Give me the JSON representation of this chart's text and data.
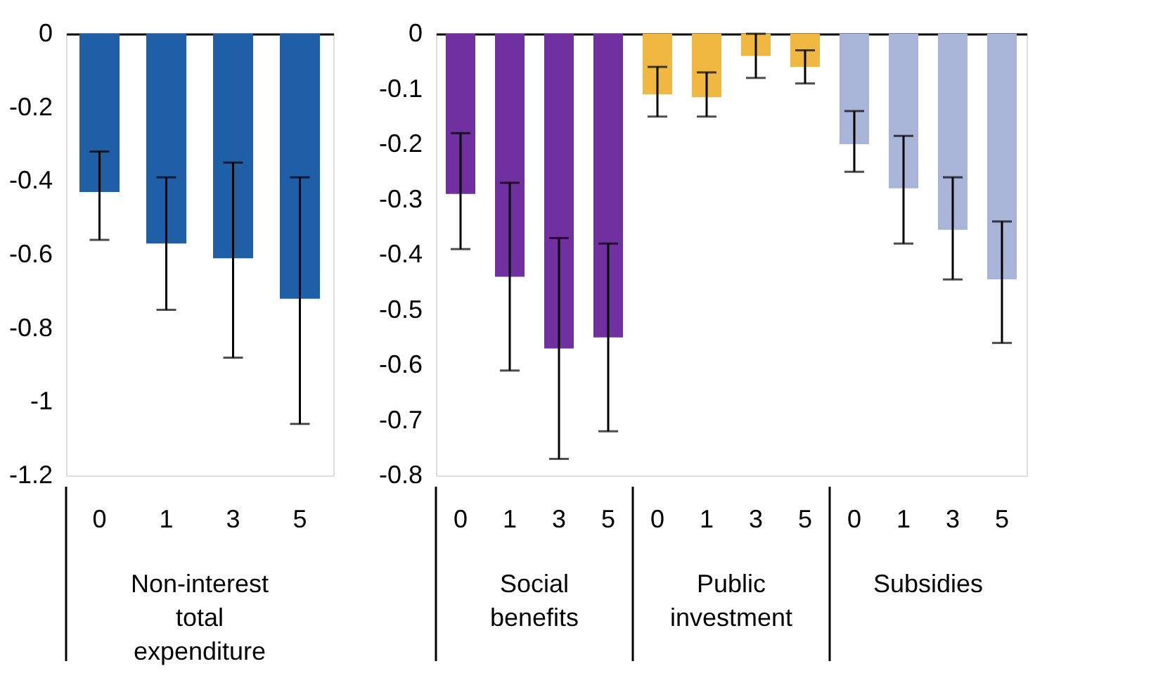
{
  "chart_data": [
    {
      "type": "bar",
      "categories": [
        "0",
        "1",
        "3",
        "5"
      ],
      "series": [
        {
          "color": "#1f5fa8",
          "values": [
            -0.43,
            -0.57,
            -0.61,
            -0.72
          ],
          "errors": [
            [
              -0.56,
              -0.32
            ],
            [
              -0.75,
              -0.39
            ],
            [
              -0.88,
              -0.35
            ],
            [
              -1.06,
              -0.39
            ]
          ]
        }
      ],
      "annotations": [
        "Non-interest total expenditure"
      ],
      "ylim": [
        -1.2,
        0
      ],
      "yticks": [
        0,
        -0.2,
        -0.4,
        -0.6,
        -0.8,
        -1,
        -1.2
      ],
      "grid": false
    },
    {
      "type": "bar",
      "categories": [
        "0",
        "1",
        "3",
        "5",
        "0",
        "1",
        "3",
        "5",
        "0",
        "1",
        "3",
        "5"
      ],
      "series": [
        {
          "color": "#7030a0",
          "values": [
            -0.29,
            -0.44,
            -0.57,
            -0.55,
            null,
            null,
            null,
            null,
            null,
            null,
            null,
            null
          ],
          "errors": [
            [
              -0.39,
              -0.18
            ],
            [
              -0.61,
              -0.27
            ],
            [
              -0.77,
              -0.37
            ],
            [
              -0.72,
              -0.38
            ],
            null,
            null,
            null,
            null,
            null,
            null,
            null,
            null
          ]
        },
        {
          "color": "#f0b840",
          "values": [
            null,
            null,
            null,
            null,
            -0.11,
            -0.115,
            -0.04,
            -0.06,
            null,
            null,
            null,
            null
          ],
          "errors": [
            null,
            null,
            null,
            null,
            [
              -0.15,
              -0.06
            ],
            [
              -0.15,
              -0.07
            ],
            [
              -0.08,
              0.0
            ],
            [
              -0.09,
              -0.03
            ],
            null,
            null,
            null,
            null
          ]
        },
        {
          "color": "#a8b4d8",
          "values": [
            null,
            null,
            null,
            null,
            null,
            null,
            null,
            null,
            -0.2,
            -0.28,
            -0.355,
            -0.445
          ],
          "errors": [
            null,
            null,
            null,
            null,
            null,
            null,
            null,
            null,
            [
              -0.25,
              -0.14
            ],
            [
              -0.38,
              -0.185
            ],
            [
              -0.445,
              -0.26
            ],
            [
              -0.56,
              -0.34
            ]
          ]
        }
      ],
      "annotations": [
        "Social benefits",
        "Public investment",
        "Subsidies"
      ],
      "ylim": [
        -0.8,
        0
      ],
      "yticks": [
        0,
        -0.1,
        -0.2,
        -0.3,
        -0.4,
        -0.5,
        -0.6,
        -0.7,
        -0.8
      ],
      "grid": false
    }
  ]
}
